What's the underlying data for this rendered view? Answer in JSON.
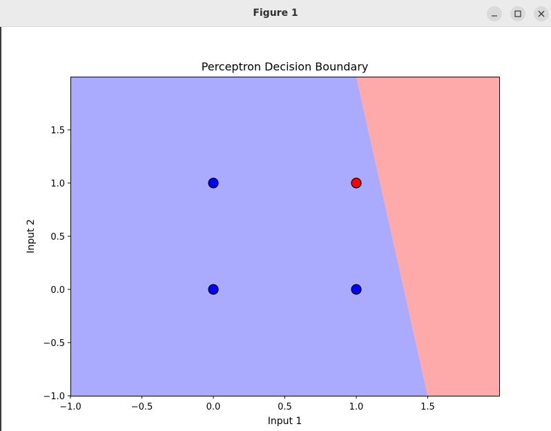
{
  "window": {
    "title": "Figure 1",
    "minimize_icon": "minimize-icon",
    "maximize_icon": "maximize-icon",
    "close_icon": "close-icon"
  },
  "chart_data": {
    "type": "scatter",
    "title": "Perceptron Decision Boundary",
    "xlabel": "Input 1",
    "ylabel": "Input 2",
    "xlim": [
      -1.0,
      2.0
    ],
    "ylim": [
      -1.0,
      2.0
    ],
    "xticks": [
      -1.0,
      -0.5,
      0.0,
      0.5,
      1.0,
      1.5
    ],
    "xtick_labels": [
      "−1.0",
      "−0.5",
      "0.0",
      "0.5",
      "1.0",
      "1.5"
    ],
    "yticks": [
      -1.0,
      -0.5,
      0.0,
      0.5,
      1.0,
      1.5
    ],
    "ytick_labels": [
      "−1.0",
      "−0.5",
      "0.0",
      "0.5",
      "1.0",
      "1.5"
    ],
    "grid": false,
    "regions": [
      {
        "class": 0,
        "color": "#aaaaff"
      },
      {
        "class": 1,
        "color": "#ffaaaa"
      }
    ],
    "decision_boundary": {
      "x_at_ymin": 1.5,
      "x_at_ymax": 1.0
    },
    "points": [
      {
        "x": 0,
        "y": 0,
        "label": 0,
        "color": "#0000ff"
      },
      {
        "x": 0,
        "y": 1,
        "label": 0,
        "color": "#0000ff"
      },
      {
        "x": 1,
        "y": 0,
        "label": 0,
        "color": "#0000ff"
      },
      {
        "x": 1,
        "y": 1,
        "label": 1,
        "color": "#ff0000"
      }
    ]
  }
}
